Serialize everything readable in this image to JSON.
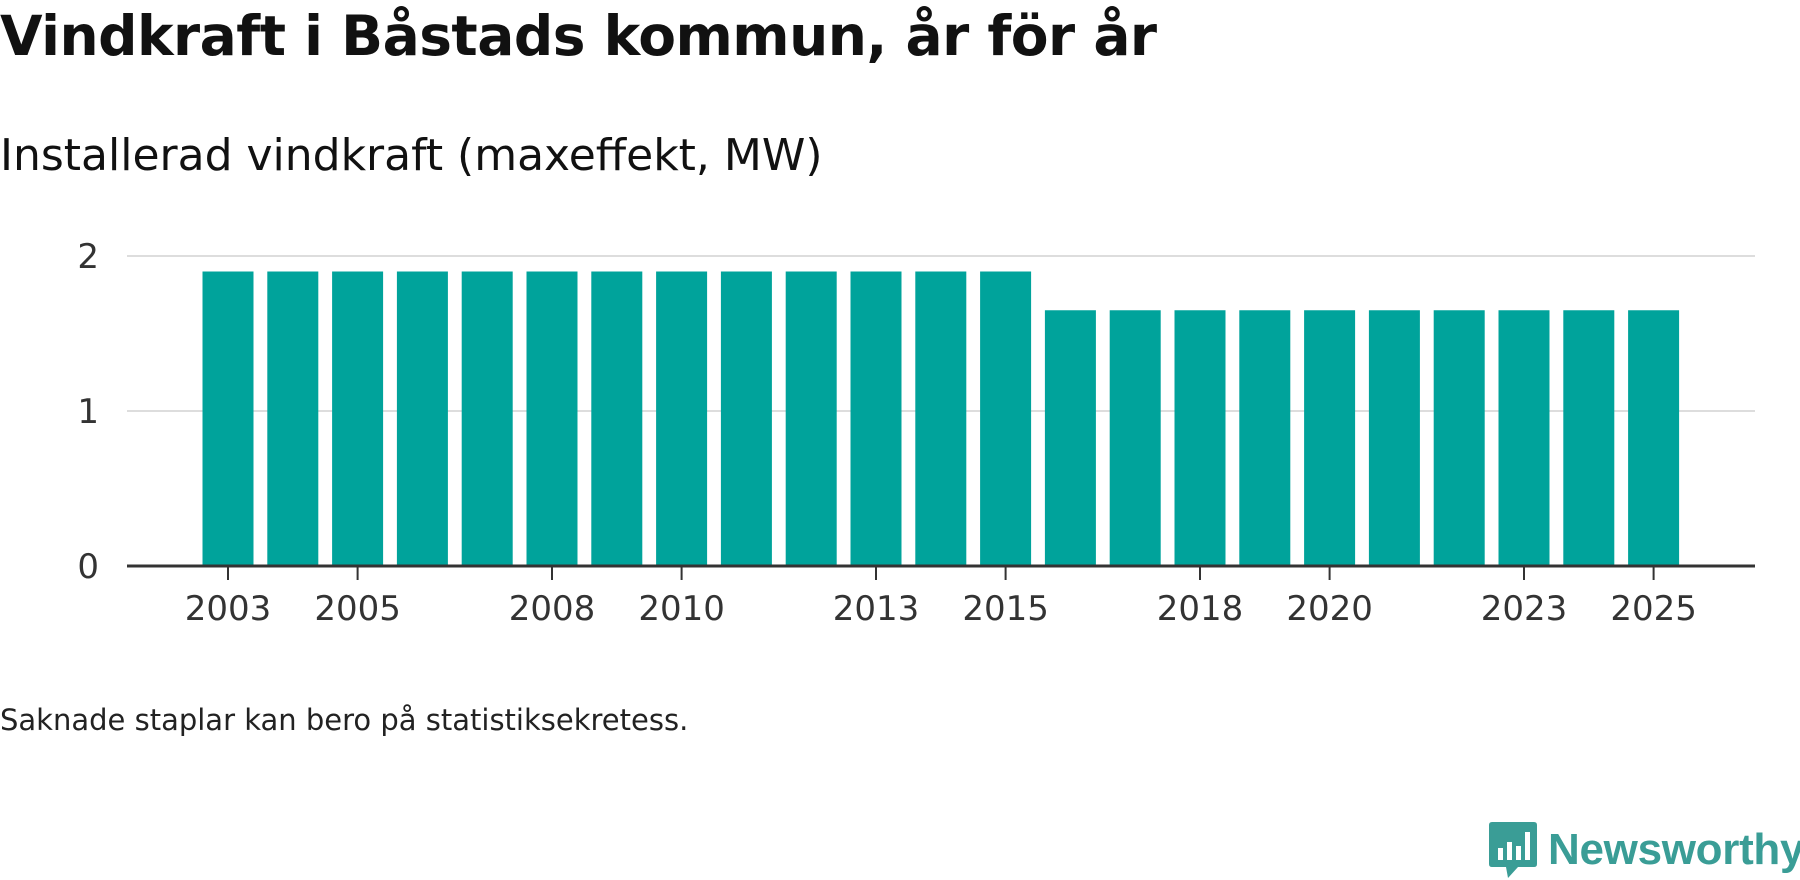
{
  "chart_data": {
    "type": "bar",
    "title": "Vindkraft i Båstads kommun, år för år",
    "subtitle": "Installerad vindkraft (maxeffekt, MW)",
    "categories": [
      2003,
      2004,
      2005,
      2006,
      2007,
      2008,
      2009,
      2010,
      2011,
      2012,
      2013,
      2014,
      2015,
      2016,
      2017,
      2018,
      2019,
      2020,
      2021,
      2022,
      2023,
      2024,
      2025
    ],
    "values": [
      1.9,
      1.9,
      1.9,
      1.9,
      1.9,
      1.9,
      1.9,
      1.9,
      1.9,
      1.9,
      1.9,
      1.9,
      1.9,
      1.65,
      1.65,
      1.65,
      1.65,
      1.65,
      1.65,
      1.65,
      1.65,
      1.65,
      1.65
    ],
    "x_tick_labels": [
      "2003",
      "2005",
      "2008",
      "2010",
      "2013",
      "2015",
      "2018",
      "2020",
      "2023",
      "2025"
    ],
    "y_ticks": [
      0,
      1,
      2
    ],
    "ylim": [
      0,
      2
    ],
    "xlabel": "",
    "ylabel": "",
    "grid": true,
    "bar_color": "#00a39b"
  },
  "footnote": "Saknade staplar kan bero på statistiksekretess.",
  "brand": {
    "name": "Newsworthy",
    "icon": "newsworthy-logo-icon",
    "color": "#3a9d96"
  }
}
